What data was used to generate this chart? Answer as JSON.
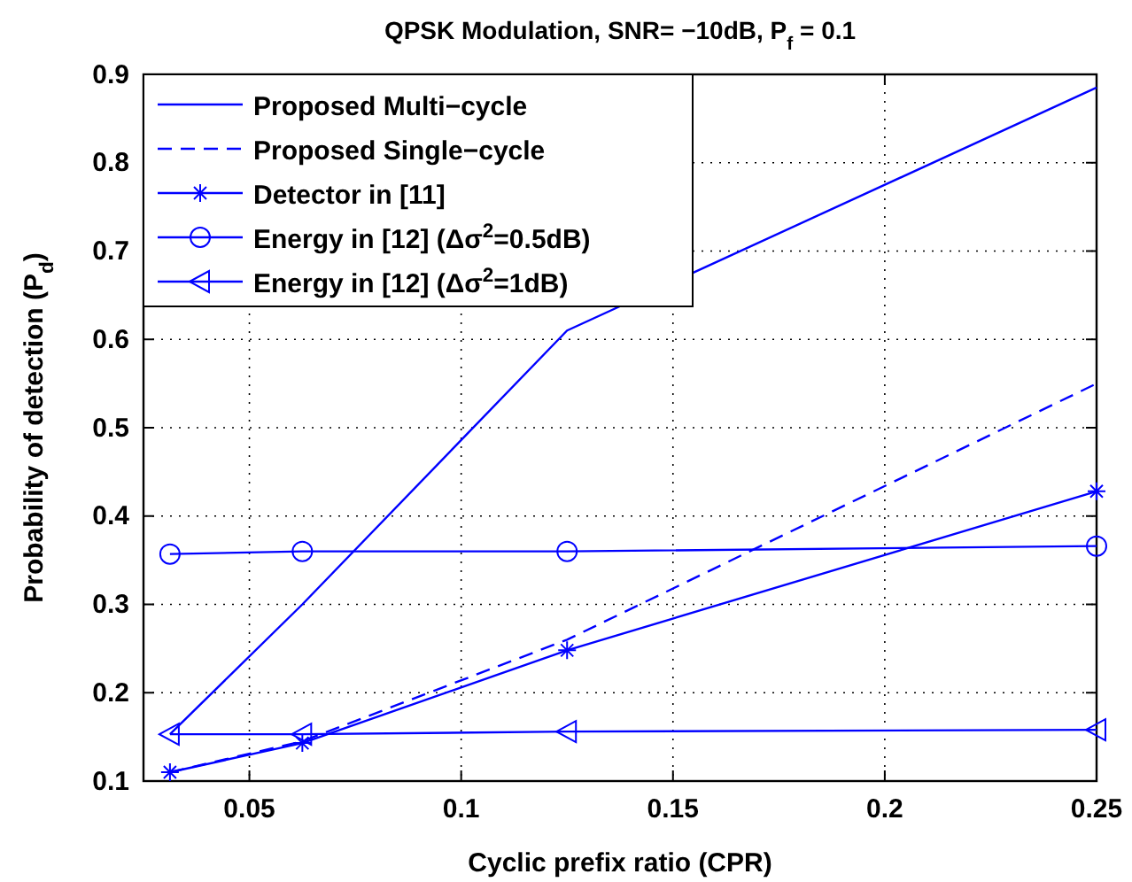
{
  "chart_data": {
    "type": "line",
    "title": "QPSK Modulation, SNR= −10dB, P$_{f}$ = 0.1",
    "xlabel": "Cyclic prefix ratio (CPR)",
    "ylabel": "Probability of detection (P$_{d}$)",
    "x": [
      0.03125,
      0.0625,
      0.125,
      0.25
    ],
    "series": [
      {
        "name": "Proposed Multi−cycle",
        "color": "#0000ff",
        "values": [
          0.153,
          0.3,
          0.61,
          0.885
        ],
        "marker": "none",
        "line_style": "solid"
      },
      {
        "name": "Proposed Single−cycle",
        "color": "#0000ff",
        "values": [
          0.11,
          0.145,
          0.26,
          0.55
        ],
        "marker": "none",
        "line_style": "dashed"
      },
      {
        "name": "Detector in [11]",
        "color": "#0000ff",
        "values": [
          0.11,
          0.143,
          0.248,
          0.428
        ],
        "marker": "cross",
        "line_style": "solid"
      },
      {
        "name": "Energy in [12] (Δσ$^{2}$=0.5dB)",
        "color": "#0000ff",
        "values": [
          0.357,
          0.36,
          0.36,
          0.366
        ],
        "marker": "circle",
        "line_style": "solid"
      },
      {
        "name": "Energy in [12] (Δσ$^{2}$=1dB)",
        "color": "#0000ff",
        "values": [
          0.153,
          0.153,
          0.156,
          0.158
        ],
        "marker": "triangle",
        "line_style": "solid"
      }
    ],
    "xlim": [
      0.025,
      0.25
    ],
    "xticks": [
      0.05,
      0.1,
      0.15,
      0.2,
      0.25
    ],
    "ylim": [
      0.1,
      0.9
    ],
    "yticks": [
      0.1,
      0.2,
      0.3,
      0.4,
      0.5,
      0.6,
      0.7,
      0.8,
      0.9
    ],
    "grid": true,
    "legend": "top left"
  }
}
